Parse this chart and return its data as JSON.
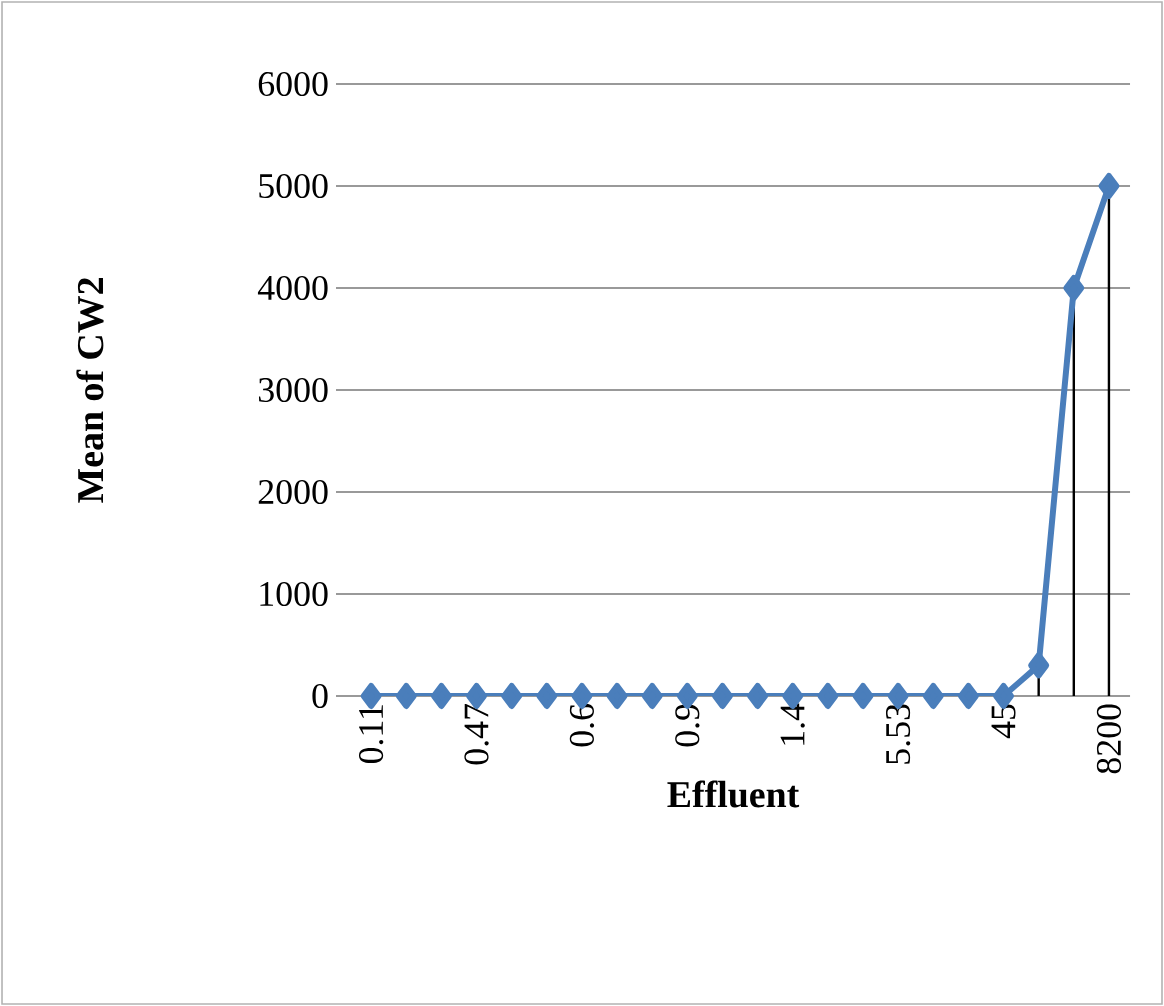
{
  "chart_data": {
    "type": "line",
    "xlabel": "Effluent",
    "ylabel": "Mean of CW2",
    "categories": [
      "0.11",
      null,
      null,
      "0.47",
      null,
      null,
      "0.6",
      null,
      null,
      "0.9",
      null,
      null,
      "1.4",
      null,
      null,
      "5.53",
      null,
      null,
      "45",
      null,
      null,
      "8200"
    ],
    "values": [
      0,
      0,
      0,
      0,
      0,
      0,
      0,
      0,
      0,
      0,
      0,
      0,
      0,
      0,
      0,
      0,
      0,
      0,
      0,
      300,
      4000,
      5000
    ],
    "errors": [
      null,
      null,
      null,
      null,
      null,
      null,
      null,
      null,
      null,
      null,
      null,
      null,
      null,
      null,
      null,
      null,
      null,
      null,
      null,
      [
        300,
        0
      ],
      [
        4000,
        0
      ],
      [
        5000,
        0
      ]
    ],
    "color": "#4a7ebb",
    "marker": "diamond",
    "line_style": "solid",
    "ylim": [
      0,
      6000
    ],
    "yticks": [
      0,
      1000,
      2000,
      3000,
      4000,
      5000,
      6000
    ],
    "grid": "y"
  }
}
